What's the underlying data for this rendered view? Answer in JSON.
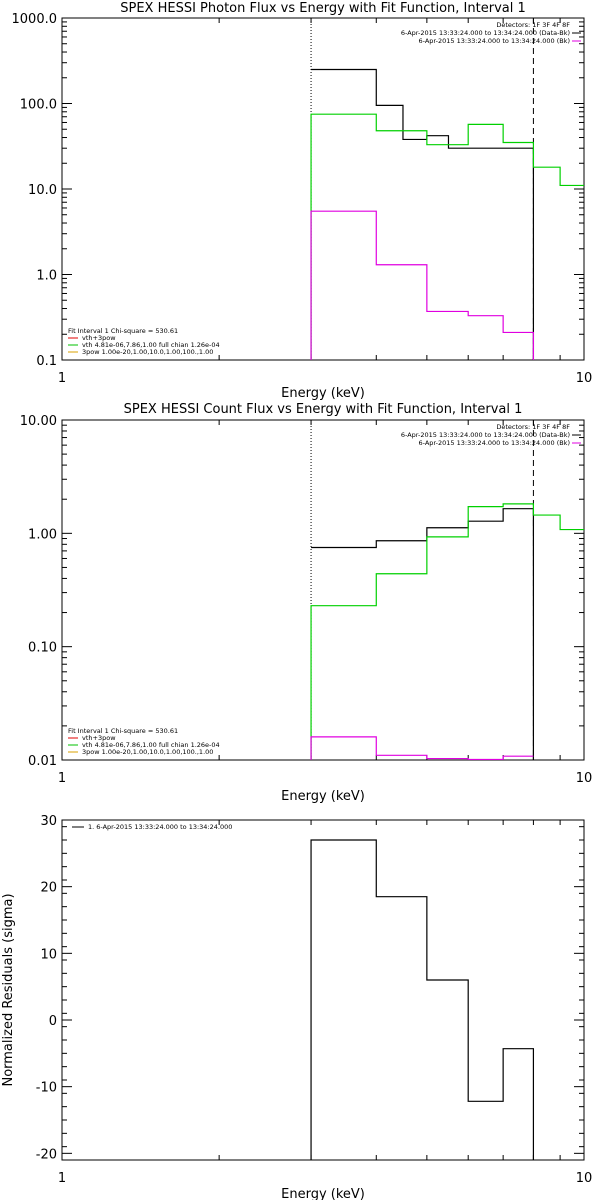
{
  "chart_data": [
    {
      "type": "line",
      "title": "SPEX HESSI Photon Flux vs Energy with Fit Function, Interval 1",
      "xlabel": "Energy (keV)",
      "ylabel": "",
      "xscale": "log",
      "yscale": "log",
      "xlim": [
        1,
        10
      ],
      "ylim": [
        0.1,
        1000
      ],
      "x_ticks": [
        {
          "v": 1,
          "label": "1"
        },
        {
          "v": 10,
          "label": "10"
        }
      ],
      "y_ticks": [
        {
          "v": 1000,
          "label": "1000.0"
        },
        {
          "v": 100,
          "label": "100.0"
        },
        {
          "v": 10,
          "label": "10.0"
        },
        {
          "v": 1,
          "label": "1.0"
        },
        {
          "v": 0.1,
          "label": "0.1"
        }
      ],
      "vlines": [
        {
          "x": 3.0,
          "style": "dotted"
        },
        {
          "x": 8.0,
          "style": "dashed"
        }
      ],
      "legend_top": [
        {
          "text": "Detectors: 1F 3F 4F 8F",
          "color": "#000000"
        },
        {
          "text": "6-Apr-2015 13:33:24.000 to 13:34:24.000 (Data-Bk)",
          "color": "#000000"
        },
        {
          "text": "6-Apr-2015 13:33:24.000 to 13:34:24.000 (Bk)",
          "color": "#e000e0"
        }
      ],
      "legend_bottom": [
        {
          "text": "Fit Interval 1   Chi-square = 530.61",
          "color": "#000000"
        },
        {
          "text": "vth+3pow",
          "color": "#e00000"
        },
        {
          "text": "vth 4.81e-06,7.86,1.00  full chian 1.26e-04",
          "color": "#00c000"
        },
        {
          "text": "3pow 1.00e-20,1.00,10.0,1.00,100.,1.00",
          "color": "#d8a000"
        }
      ],
      "series": [
        {
          "color": "#000000",
          "edges": [
            3.0,
            3.5,
            4.0,
            4.5,
            5.0,
            5.5,
            6.0,
            7.0,
            8.0
          ],
          "values": [
            250,
            250,
            95,
            38,
            42,
            30,
            30,
            30
          ],
          "drop_to_axis_at_end": true
        },
        {
          "color": "#00d000",
          "edges": [
            3.0,
            4.0,
            5.0,
            6.0,
            7.0,
            8.0,
            9.0,
            10.0
          ],
          "values": [
            75,
            48,
            33,
            57,
            35,
            18,
            11
          ],
          "drop_to_axis_at_start": true
        },
        {
          "color": "#e000e0",
          "edges": [
            3.0,
            4.0,
            5.0,
            6.0,
            7.0,
            8.0
          ],
          "values": [
            5.5,
            1.3,
            0.37,
            0.33,
            0.21
          ],
          "drop_to_axis_at_start": true,
          "drop_to_axis_at_end": true
        }
      ]
    },
    {
      "type": "line",
      "title": "SPEX HESSI Count Flux vs Energy with Fit Function, Interval 1",
      "xlabel": "Energy (keV)",
      "ylabel": "",
      "xscale": "log",
      "yscale": "log",
      "xlim": [
        1,
        10
      ],
      "ylim": [
        0.01,
        10
      ],
      "x_ticks": [
        {
          "v": 1,
          "label": "1"
        },
        {
          "v": 10,
          "label": "10"
        }
      ],
      "y_ticks": [
        {
          "v": 10,
          "label": "10.00"
        },
        {
          "v": 1,
          "label": "1.00"
        },
        {
          "v": 0.1,
          "label": "0.10"
        },
        {
          "v": 0.01,
          "label": "0.01"
        }
      ],
      "vlines": [
        {
          "x": 3.0,
          "style": "dotted"
        },
        {
          "x": 8.0,
          "style": "dashed"
        }
      ],
      "legend_top": [
        {
          "text": "Detectors: 1F 3F 4F 8F",
          "color": "#000000"
        },
        {
          "text": "6-Apr-2015 13:33:24.000 to 13:34:24.000 (Data-Bk)",
          "color": "#000000"
        },
        {
          "text": "6-Apr-2015 13:33:24.000 to 13:34:24.000 (Bk)",
          "color": "#e000e0"
        }
      ],
      "legend_bottom": [
        {
          "text": "Fit Interval 1   Chi-square = 530.61",
          "color": "#000000"
        },
        {
          "text": "vth+3pow",
          "color": "#e00000"
        },
        {
          "text": "vth 4.81e-06,7.86,1.00  full chian 1.26e-04",
          "color": "#00c000"
        },
        {
          "text": "3pow 1.00e-20,1.00,10.0,1.00,100.,1.00",
          "color": "#d8a000"
        }
      ],
      "series": [
        {
          "color": "#000000",
          "edges": [
            3.0,
            4.0,
            5.0,
            6.0,
            7.0,
            8.0
          ],
          "values": [
            0.75,
            0.86,
            1.12,
            1.28,
            1.65
          ],
          "drop_to_axis_at_end": true
        },
        {
          "color": "#00d000",
          "edges": [
            3.0,
            4.0,
            5.0,
            6.0,
            7.0,
            8.0,
            9.0,
            10.0
          ],
          "values": [
            0.23,
            0.44,
            0.93,
            1.72,
            1.82,
            1.45,
            1.08
          ],
          "drop_to_axis_at_start": true
        },
        {
          "color": "#e000e0",
          "edges": [
            3.0,
            4.0,
            5.0,
            6.0,
            7.0,
            8.0
          ],
          "values": [
            0.016,
            0.011,
            0.0103,
            0.0101,
            0.0108
          ],
          "drop_to_axis_at_start": true
        }
      ]
    },
    {
      "type": "line",
      "title": "",
      "xlabel": "Energy (keV)",
      "ylabel": "Normalized Residuals (sigma)",
      "xscale": "log",
      "yscale": "linear",
      "xlim": [
        1,
        10
      ],
      "ylim": [
        -21,
        30
      ],
      "x_ticks": [
        {
          "v": 1,
          "label": "1"
        },
        {
          "v": 10,
          "label": "10"
        }
      ],
      "y_ticks": [
        {
          "v": 30,
          "label": "30"
        },
        {
          "v": 20,
          "label": "20"
        },
        {
          "v": 10,
          "label": "10"
        },
        {
          "v": 0,
          "label": "0"
        },
        {
          "v": -10,
          "label": "-10"
        },
        {
          "v": -20,
          "label": "-20"
        }
      ],
      "vlines": [],
      "legend_top": [
        {
          "text": "1.  6-Apr-2015 13:33:24.000 to 13:34:24.000",
          "color": "#000000"
        }
      ],
      "legend_bottom": [],
      "series": [
        {
          "color": "#000000",
          "edges": [
            3.0,
            4.0,
            5.0,
            6.0,
            7.0,
            8.0
          ],
          "values": [
            27,
            18.5,
            6,
            -12.2,
            -4.3
          ],
          "drop_to_axis_at_start": true,
          "drop_to_axis_at_end": true
        }
      ]
    }
  ]
}
